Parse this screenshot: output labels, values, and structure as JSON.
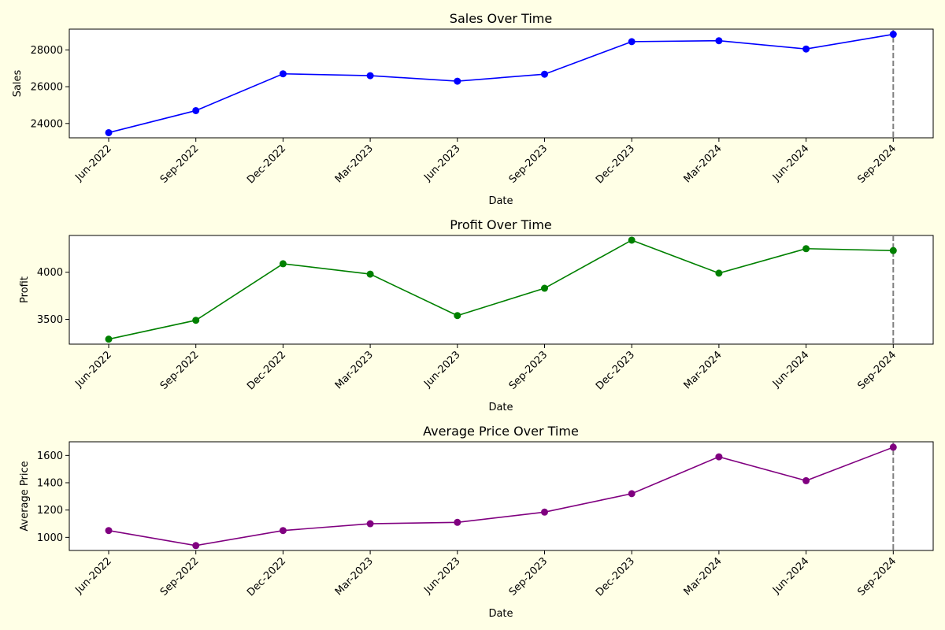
{
  "figure": {
    "background": "#ffffe6"
  },
  "chart_data": [
    {
      "type": "line",
      "title": "Sales Over Time",
      "xlabel": "Date",
      "ylabel": "Sales",
      "categories": [
        "Jun-2022",
        "Sep-2022",
        "Dec-2022",
        "Mar-2023",
        "Jun-2023",
        "Sep-2023",
        "Dec-2023",
        "Mar-2024",
        "Jun-2024",
        "Sep-2024"
      ],
      "series": [
        {
          "values": [
            23500,
            24700,
            26700,
            26600,
            26300,
            26680,
            28450,
            28500,
            28050,
            28850
          ],
          "color": "#0000ff"
        }
      ],
      "ylim": [
        23220,
        29130
      ],
      "yticks": [
        24000,
        26000,
        28000
      ],
      "marker": "circle",
      "vline": {
        "at": "Sep-2024",
        "style": "dashed",
        "color": "#808080"
      },
      "grid": false,
      "legend": "none"
    },
    {
      "type": "line",
      "title": "Profit Over Time",
      "xlabel": "Date",
      "ylabel": "Profit",
      "categories": [
        "Jun-2022",
        "Sep-2022",
        "Dec-2022",
        "Mar-2023",
        "Jun-2023",
        "Sep-2023",
        "Dec-2023",
        "Mar-2024",
        "Jun-2024",
        "Sep-2024"
      ],
      "series": [
        {
          "values": [
            3290,
            3490,
            4090,
            3980,
            3540,
            3830,
            4340,
            3990,
            4250,
            4230
          ],
          "color": "#008000"
        }
      ],
      "ylim": [
        3237,
        4390
      ],
      "yticks": [
        3500,
        4000
      ],
      "marker": "circle",
      "vline": {
        "at": "Sep-2024",
        "style": "dashed",
        "color": "#808080"
      },
      "grid": false,
      "legend": "none"
    },
    {
      "type": "line",
      "title": "Average Price Over Time",
      "xlabel": "Date",
      "ylabel": "Average Price",
      "categories": [
        "Jun-2022",
        "Sep-2022",
        "Dec-2022",
        "Mar-2023",
        "Jun-2023",
        "Sep-2023",
        "Dec-2023",
        "Mar-2024",
        "Jun-2024",
        "Sep-2024"
      ],
      "series": [
        {
          "values": [
            1050,
            940,
            1050,
            1100,
            1110,
            1185,
            1320,
            1590,
            1415,
            1660
          ]
        }
      ],
      "ylim": [
        904,
        1700
      ],
      "yticks": [
        1000,
        1200,
        1400,
        1600
      ],
      "marker": "circle",
      "vline": {
        "at": "Sep-2024",
        "style": "dashed",
        "color": "#808080"
      },
      "grid": false,
      "legend": "none"
    }
  ],
  "colors": {
    "sales": "#0000ff",
    "profit": "#008000",
    "average_price": "#800080",
    "reference_line": "#808080"
  }
}
